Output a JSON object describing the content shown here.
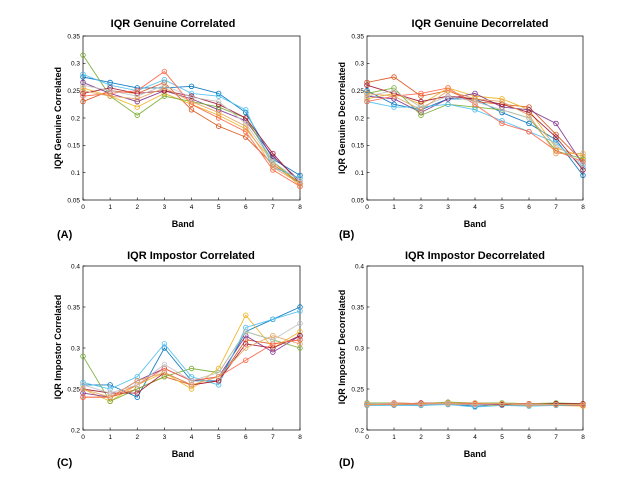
{
  "chart_data": [
    {
      "panel_label": "(A)",
      "type": "line",
      "title": "IQR Genuine Correlated",
      "xlabel": "Band",
      "ylabel": "IQR Genuine Correlated",
      "xlim": [
        0,
        8
      ],
      "ylim": [
        0.05,
        0.35
      ],
      "x": [
        0,
        1,
        2,
        3,
        4,
        5,
        6,
        7,
        8
      ],
      "xticks": [
        "0",
        "1",
        "2",
        "3",
        "4",
        "5",
        "6",
        "7",
        "8"
      ],
      "yticks": [
        "0.05",
        "0.1",
        "0.15",
        "0.2",
        "0.25",
        "0.3",
        "0.35"
      ],
      "grid": false,
      "series": [
        {
          "color": "#0072BD",
          "values": [
            0.275,
            0.265,
            0.255,
            0.255,
            0.258,
            0.245,
            0.21,
            0.125,
            0.095
          ]
        },
        {
          "color": "#D95319",
          "values": [
            0.23,
            0.25,
            0.245,
            0.265,
            0.215,
            0.185,
            0.165,
            0.115,
            0.08
          ]
        },
        {
          "color": "#EDB120",
          "values": [
            0.255,
            0.24,
            0.22,
            0.245,
            0.225,
            0.205,
            0.18,
            0.12,
            0.075
          ]
        },
        {
          "color": "#7E2F8E",
          "values": [
            0.265,
            0.245,
            0.23,
            0.25,
            0.235,
            0.215,
            0.195,
            0.13,
            0.085
          ]
        },
        {
          "color": "#77AC30",
          "values": [
            0.315,
            0.24,
            0.205,
            0.24,
            0.23,
            0.22,
            0.2,
            0.12,
            0.08
          ]
        },
        {
          "color": "#4DBEEE",
          "values": [
            0.28,
            0.26,
            0.25,
            0.27,
            0.245,
            0.24,
            0.215,
            0.11,
            0.09
          ]
        },
        {
          "color": "#A2142F",
          "values": [
            0.245,
            0.255,
            0.245,
            0.25,
            0.24,
            0.225,
            0.2,
            0.135,
            0.08
          ]
        },
        {
          "color": "#FF6347",
          "values": [
            0.24,
            0.245,
            0.25,
            0.285,
            0.225,
            0.2,
            0.175,
            0.105,
            0.075
          ]
        },
        {
          "color": "#C0C0C0",
          "values": [
            0.26,
            0.25,
            0.24,
            0.26,
            0.238,
            0.23,
            0.19,
            0.12,
            0.085
          ]
        },
        {
          "color": "#E6A15C",
          "values": [
            0.25,
            0.24,
            0.235,
            0.255,
            0.23,
            0.21,
            0.185,
            0.11,
            0.08
          ]
        }
      ]
    },
    {
      "panel_label": "(B)",
      "type": "line",
      "title": "IQR Genuine Decorrelated",
      "xlabel": "Band",
      "ylabel": "IQR Genuine Decorrelated",
      "xlim": [
        0,
        8
      ],
      "ylim": [
        0.05,
        0.35
      ],
      "x": [
        0,
        1,
        2,
        3,
        4,
        5,
        6,
        7,
        8
      ],
      "xticks": [
        "0",
        "1",
        "2",
        "3",
        "4",
        "5",
        "6",
        "7",
        "8"
      ],
      "yticks": [
        "0.05",
        "0.1",
        "0.15",
        "0.2",
        "0.25",
        "0.3",
        "0.35"
      ],
      "grid": false,
      "series": [
        {
          "color": "#0072BD",
          "values": [
            0.25,
            0.225,
            0.215,
            0.235,
            0.235,
            0.21,
            0.19,
            0.16,
            0.095
          ]
        },
        {
          "color": "#D95319",
          "values": [
            0.265,
            0.275,
            0.24,
            0.25,
            0.23,
            0.225,
            0.22,
            0.17,
            0.12
          ]
        },
        {
          "color": "#EDB120",
          "values": [
            0.235,
            0.245,
            0.225,
            0.255,
            0.24,
            0.235,
            0.215,
            0.145,
            0.13
          ]
        },
        {
          "color": "#7E2F8E",
          "values": [
            0.24,
            0.235,
            0.21,
            0.235,
            0.245,
            0.22,
            0.215,
            0.19,
            0.115
          ]
        },
        {
          "color": "#77AC30",
          "values": [
            0.245,
            0.255,
            0.205,
            0.225,
            0.22,
            0.215,
            0.2,
            0.14,
            0.125
          ]
        },
        {
          "color": "#4DBEEE",
          "values": [
            0.23,
            0.22,
            0.22,
            0.225,
            0.215,
            0.195,
            0.175,
            0.155,
            0.11
          ]
        },
        {
          "color": "#A2142F",
          "values": [
            0.26,
            0.245,
            0.23,
            0.24,
            0.235,
            0.225,
            0.21,
            0.165,
            0.105
          ]
        },
        {
          "color": "#FF6347",
          "values": [
            0.23,
            0.24,
            0.245,
            0.255,
            0.225,
            0.19,
            0.175,
            0.14,
            0.12
          ]
        },
        {
          "color": "#C0C0C0",
          "values": [
            0.24,
            0.25,
            0.22,
            0.24,
            0.23,
            0.215,
            0.2,
            0.15,
            0.115
          ]
        },
        {
          "color": "#E6A15C",
          "values": [
            0.245,
            0.24,
            0.215,
            0.25,
            0.235,
            0.23,
            0.205,
            0.135,
            0.135
          ]
        }
      ]
    },
    {
      "panel_label": "(C)",
      "type": "line",
      "title": "IQR Impostor Correlated",
      "xlabel": "Band",
      "ylabel": "IQR Impostor Correlated",
      "xlim": [
        0,
        8
      ],
      "ylim": [
        0.2,
        0.4
      ],
      "x": [
        0,
        1,
        2,
        3,
        4,
        5,
        6,
        7,
        8
      ],
      "xticks": [
        "0",
        "1",
        "2",
        "3",
        "4",
        "5",
        "6",
        "7",
        "8"
      ],
      "yticks": [
        "0.2",
        "0.25",
        "0.3",
        "0.35",
        "0.4"
      ],
      "grid": false,
      "series": [
        {
          "color": "#0072BD",
          "values": [
            0.255,
            0.255,
            0.24,
            0.3,
            0.26,
            0.26,
            0.32,
            0.335,
            0.35
          ]
        },
        {
          "color": "#D95319",
          "values": [
            0.24,
            0.24,
            0.25,
            0.265,
            0.255,
            0.26,
            0.31,
            0.305,
            0.31
          ]
        },
        {
          "color": "#EDB120",
          "values": [
            0.25,
            0.235,
            0.255,
            0.27,
            0.25,
            0.275,
            0.34,
            0.3,
            0.32
          ]
        },
        {
          "color": "#7E2F8E",
          "values": [
            0.245,
            0.24,
            0.26,
            0.275,
            0.26,
            0.265,
            0.315,
            0.295,
            0.315
          ]
        },
        {
          "color": "#77AC30",
          "values": [
            0.29,
            0.235,
            0.25,
            0.265,
            0.275,
            0.27,
            0.32,
            0.31,
            0.3
          ]
        },
        {
          "color": "#4DBEEE",
          "values": [
            0.258,
            0.25,
            0.265,
            0.305,
            0.265,
            0.255,
            0.325,
            0.335,
            0.345
          ]
        },
        {
          "color": "#A2142F",
          "values": [
            0.25,
            0.245,
            0.245,
            0.27,
            0.255,
            0.26,
            0.305,
            0.3,
            0.315
          ]
        },
        {
          "color": "#FF6347",
          "values": [
            0.24,
            0.24,
            0.255,
            0.275,
            0.26,
            0.265,
            0.285,
            0.305,
            0.31
          ]
        },
        {
          "color": "#C0C0C0",
          "values": [
            0.255,
            0.245,
            0.255,
            0.28,
            0.26,
            0.27,
            0.32,
            0.31,
            0.33
          ]
        },
        {
          "color": "#E6A15C",
          "values": [
            0.25,
            0.24,
            0.26,
            0.27,
            0.255,
            0.265,
            0.3,
            0.315,
            0.305
          ]
        }
      ]
    },
    {
      "panel_label": "(D)",
      "type": "line",
      "title": "IQR Impostor Decorrelated",
      "xlabel": "Band",
      "ylabel": "IQR Impostor Decorrelated",
      "xlim": [
        0,
        8
      ],
      "ylim": [
        0.2,
        0.4
      ],
      "x": [
        0,
        1,
        2,
        3,
        4,
        5,
        6,
        7,
        8
      ],
      "xticks": [
        "0",
        "1",
        "2",
        "3",
        "4",
        "5",
        "6",
        "7",
        "8"
      ],
      "yticks": [
        "0.2",
        "0.25",
        "0.3",
        "0.35",
        "0.4"
      ],
      "grid": false,
      "series": [
        {
          "color": "#0072BD",
          "values": [
            0.231,
            0.231,
            0.23,
            0.232,
            0.229,
            0.231,
            0.23,
            0.231,
            0.23
          ]
        },
        {
          "color": "#D95319",
          "values": [
            0.232,
            0.232,
            0.231,
            0.233,
            0.232,
            0.232,
            0.231,
            0.232,
            0.231
          ]
        },
        {
          "color": "#EDB120",
          "values": [
            0.23,
            0.231,
            0.232,
            0.231,
            0.231,
            0.23,
            0.231,
            0.23,
            0.229
          ]
        },
        {
          "color": "#7E2F8E",
          "values": [
            0.231,
            0.232,
            0.231,
            0.232,
            0.231,
            0.231,
            0.232,
            0.231,
            0.231
          ]
        },
        {
          "color": "#77AC30",
          "values": [
            0.233,
            0.233,
            0.232,
            0.234,
            0.233,
            0.233,
            0.232,
            0.233,
            0.232
          ]
        },
        {
          "color": "#4DBEEE",
          "values": [
            0.23,
            0.23,
            0.23,
            0.231,
            0.228,
            0.23,
            0.229,
            0.23,
            0.23
          ]
        },
        {
          "color": "#A2142F",
          "values": [
            0.232,
            0.231,
            0.233,
            0.232,
            0.232,
            0.231,
            0.231,
            0.232,
            0.232
          ]
        },
        {
          "color": "#FF6347",
          "values": [
            0.231,
            0.233,
            0.232,
            0.233,
            0.232,
            0.232,
            0.232,
            0.231,
            0.23
          ]
        },
        {
          "color": "#C0C0C0",
          "values": [
            0.232,
            0.232,
            0.231,
            0.232,
            0.231,
            0.232,
            0.231,
            0.231,
            0.231
          ]
        },
        {
          "color": "#E6A15C",
          "values": [
            0.231,
            0.231,
            0.232,
            0.233,
            0.233,
            0.232,
            0.23,
            0.231,
            0.231
          ]
        }
      ]
    }
  ]
}
